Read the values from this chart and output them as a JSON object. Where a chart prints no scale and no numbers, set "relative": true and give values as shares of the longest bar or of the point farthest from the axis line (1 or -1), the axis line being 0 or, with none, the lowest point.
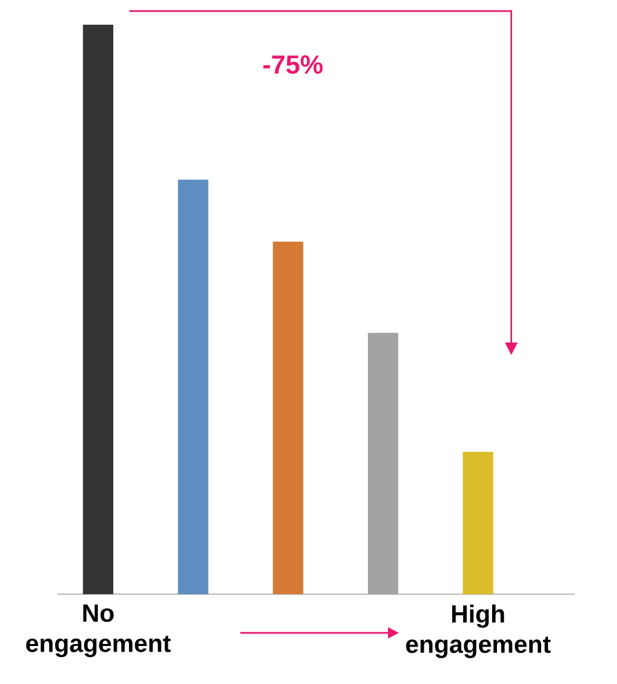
{
  "chart_data": {
    "type": "bar",
    "relative": true,
    "categories": [
      "No engagement",
      null,
      null,
      null,
      "High engagement"
    ],
    "values": [
      1,
      0.728,
      0.619,
      0.459,
      0.25
    ],
    "colors": [
      "#333333",
      "#5f8fc2",
      "#d47a35",
      "#a3a3a3",
      "#d9bd2a"
    ],
    "annotations": [
      "-75%"
    ],
    "grid": false
  }
}
